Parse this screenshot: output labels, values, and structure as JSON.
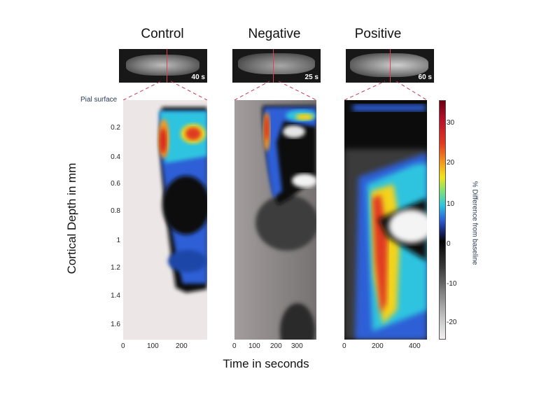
{
  "panels": [
    {
      "title": "Control",
      "time_label": "40 s",
      "xticks": [
        "0",
        "100",
        "200"
      ]
    },
    {
      "title": "Negative",
      "time_label": "25 s",
      "xticks": [
        "0",
        "100",
        "200",
        "300"
      ]
    },
    {
      "title": "Positive",
      "time_label": "60 s",
      "xticks": [
        "0",
        "200",
        "400"
      ]
    }
  ],
  "pial_surface_label": "Pial surface",
  "y_axis_label": "Cortical Depth in mm",
  "y_ticks": [
    "0.2",
    "0.4",
    "0.6",
    "0.8",
    "1",
    "1.2",
    "1.4",
    "1.6"
  ],
  "x_axis_label": "Time in seconds",
  "colorbar": {
    "label": "% Difference from baseline",
    "ticks": [
      "30",
      "20",
      "10",
      "0",
      "-10",
      "-20"
    ]
  }
}
